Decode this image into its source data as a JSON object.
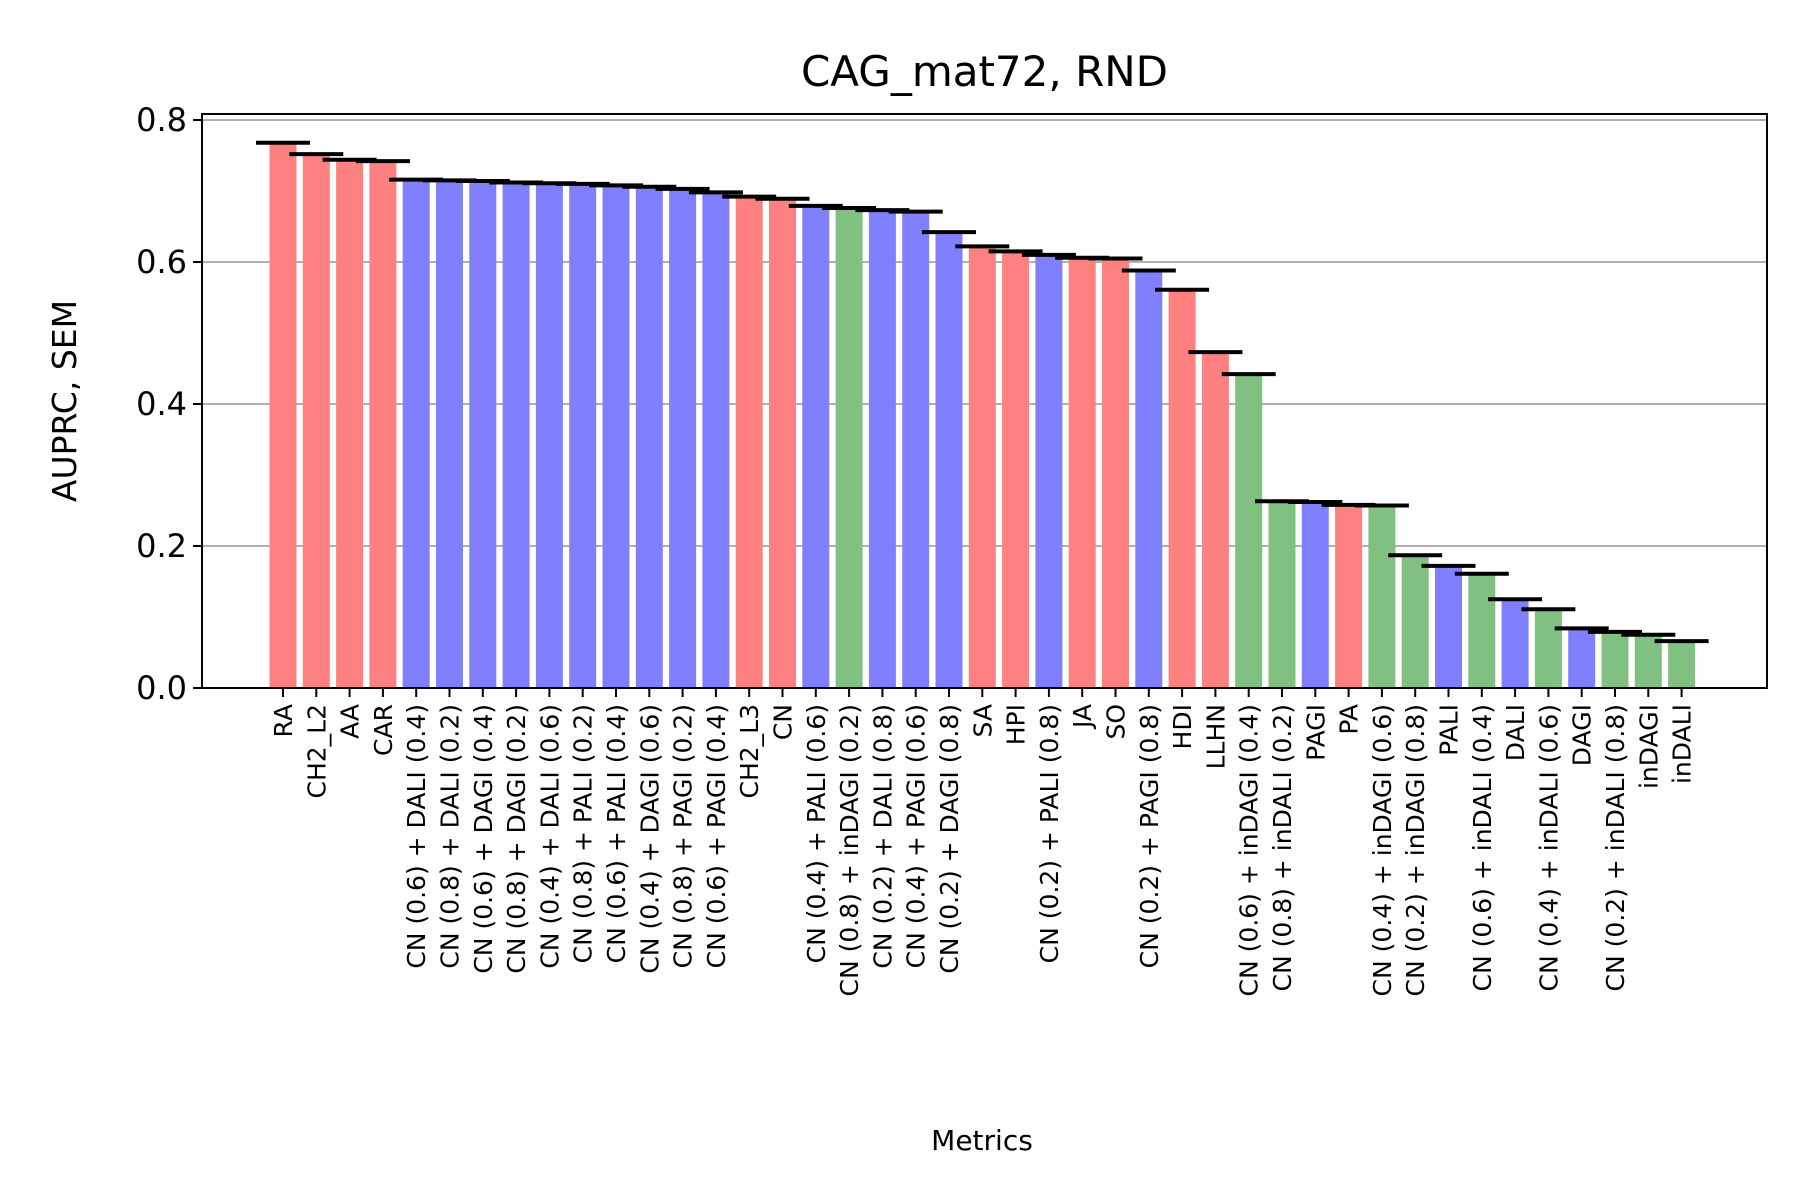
{
  "chart_data": {
    "type": "bar",
    "title": "CAG_mat72, RND",
    "xlabel": "Metrics",
    "ylabel": "AUPRC, SEM",
    "ylim": [
      0,
      0.8
    ],
    "yticks": [
      "0.0",
      "0.2",
      "0.4",
      "0.6",
      "0.8"
    ],
    "grid": "y",
    "colors": {
      "red": "#ff8080",
      "blue": "#8080ff",
      "green": "#80c080"
    },
    "bars": [
      {
        "label": "RA",
        "value": 0.768,
        "color": "red"
      },
      {
        "label": "CH2_L2",
        "value": 0.752,
        "color": "red"
      },
      {
        "label": "AA",
        "value": 0.744,
        "color": "red"
      },
      {
        "label": "CAR",
        "value": 0.742,
        "color": "red"
      },
      {
        "label": "CN (0.6) + DALI (0.4)",
        "value": 0.716,
        "color": "blue"
      },
      {
        "label": "CN (0.8) + DALI (0.2)",
        "value": 0.715,
        "color": "blue"
      },
      {
        "label": "CN (0.6) + DAGI (0.4)",
        "value": 0.714,
        "color": "blue"
      },
      {
        "label": "CN (0.8) + DAGI (0.2)",
        "value": 0.712,
        "color": "blue"
      },
      {
        "label": "CN (0.4) + DALI (0.6)",
        "value": 0.711,
        "color": "blue"
      },
      {
        "label": "CN (0.8) + PALI (0.2)",
        "value": 0.71,
        "color": "blue"
      },
      {
        "label": "CN (0.6) + PALI (0.4)",
        "value": 0.708,
        "color": "blue"
      },
      {
        "label": "CN (0.4) + DAGI (0.6)",
        "value": 0.706,
        "color": "blue"
      },
      {
        "label": "CN (0.8) + PAGI (0.2)",
        "value": 0.703,
        "color": "blue"
      },
      {
        "label": "CN (0.6) + PAGI (0.4)",
        "value": 0.698,
        "color": "blue"
      },
      {
        "label": "CH2_L3",
        "value": 0.692,
        "color": "red"
      },
      {
        "label": "CN",
        "value": 0.689,
        "color": "red"
      },
      {
        "label": "CN (0.4) + PALI (0.6)",
        "value": 0.679,
        "color": "blue"
      },
      {
        "label": "CN (0.8) + inDAGI (0.2)",
        "value": 0.676,
        "color": "green"
      },
      {
        "label": "CN (0.2) + DALI (0.8)",
        "value": 0.673,
        "color": "blue"
      },
      {
        "label": "CN (0.4) + PAGI (0.6)",
        "value": 0.671,
        "color": "blue"
      },
      {
        "label": "CN (0.2) + DAGI (0.8)",
        "value": 0.642,
        "color": "blue"
      },
      {
        "label": "SA",
        "value": 0.622,
        "color": "red"
      },
      {
        "label": "HPI",
        "value": 0.615,
        "color": "red"
      },
      {
        "label": "CN (0.2) + PALI (0.8)",
        "value": 0.61,
        "color": "blue"
      },
      {
        "label": "JA",
        "value": 0.606,
        "color": "red"
      },
      {
        "label": "SO",
        "value": 0.605,
        "color": "red"
      },
      {
        "label": "CN (0.2) + PAGI (0.8)",
        "value": 0.588,
        "color": "blue"
      },
      {
        "label": "HDI",
        "value": 0.561,
        "color": "red"
      },
      {
        "label": "LLHN",
        "value": 0.473,
        "color": "red"
      },
      {
        "label": "CN (0.6) + inDAGI (0.4)",
        "value": 0.442,
        "color": "green"
      },
      {
        "label": "CN (0.8) + inDALI (0.2)",
        "value": 0.263,
        "color": "green"
      },
      {
        "label": "PAGI",
        "value": 0.262,
        "color": "blue"
      },
      {
        "label": "PA",
        "value": 0.258,
        "color": "red"
      },
      {
        "label": "CN (0.4) + inDAGI (0.6)",
        "value": 0.257,
        "color": "green"
      },
      {
        "label": "CN (0.2) + inDAGI (0.8)",
        "value": 0.187,
        "color": "green"
      },
      {
        "label": "PALI",
        "value": 0.172,
        "color": "blue"
      },
      {
        "label": "CN (0.6) + inDALI (0.4)",
        "value": 0.161,
        "color": "green"
      },
      {
        "label": "DALI",
        "value": 0.125,
        "color": "blue"
      },
      {
        "label": "CN (0.4) + inDALI (0.6)",
        "value": 0.111,
        "color": "green"
      },
      {
        "label": "DAGI",
        "value": 0.084,
        "color": "blue"
      },
      {
        "label": "CN (0.2) + inDALI (0.8)",
        "value": 0.079,
        "color": "green"
      },
      {
        "label": "inDAGI",
        "value": 0.075,
        "color": "green"
      },
      {
        "label": "inDALI",
        "value": 0.066,
        "color": "green"
      }
    ]
  }
}
